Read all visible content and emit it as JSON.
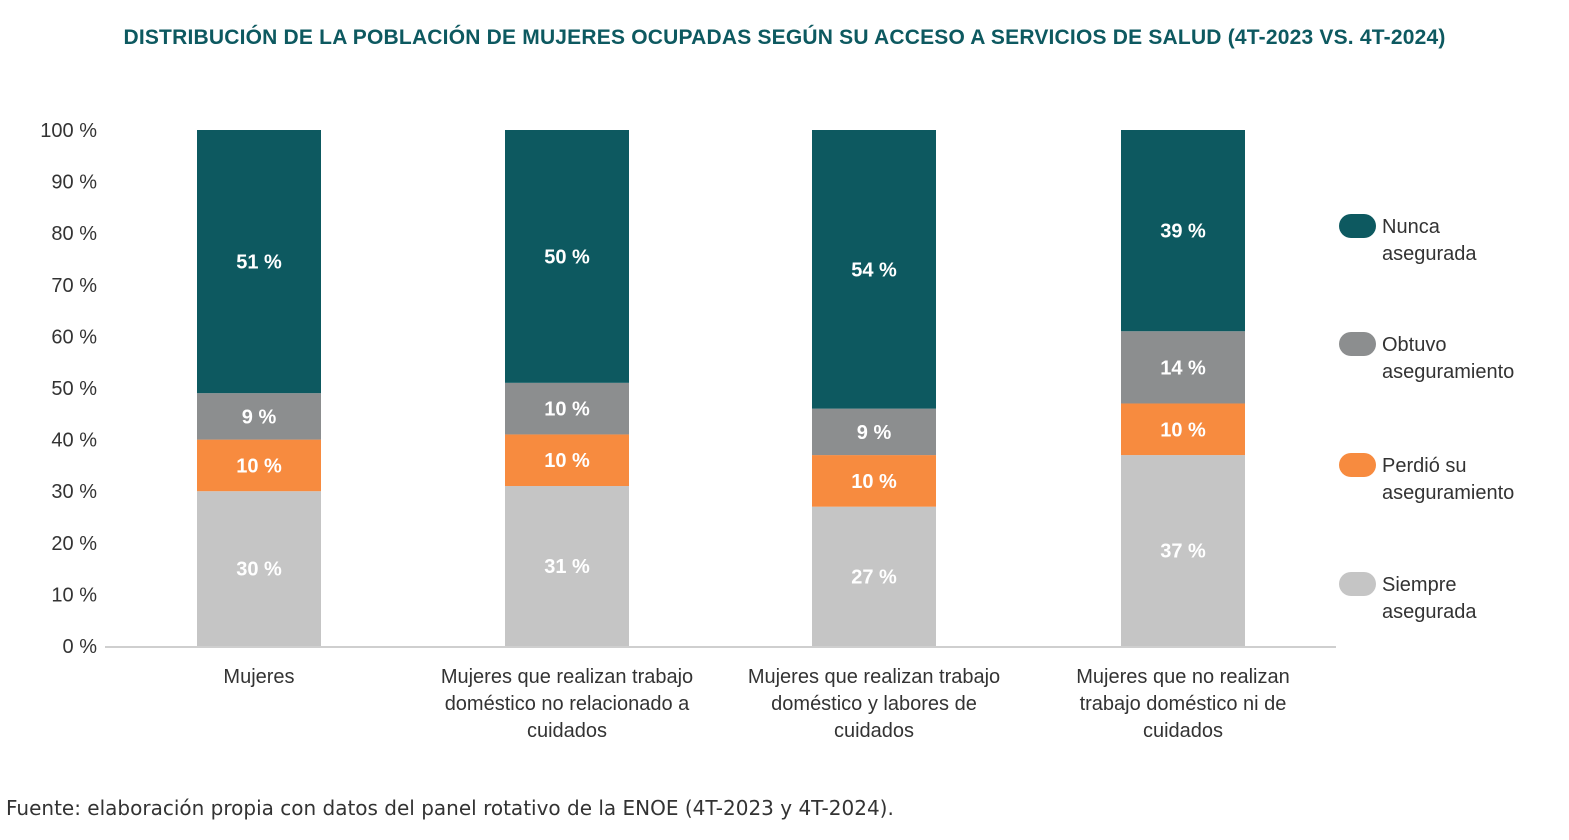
{
  "title": "DISTRIBUCIÓN DE LA POBLACIÓN DE MUJERES OCUPADAS SEGÚN SU ACCESO A SERVICIOS DE SALUD (4T-2023 VS. 4T-2024)",
  "source": "Fuente: elaboración propia con datos del panel rotativo de la ENOE (4T-2023 y 4T-2024).",
  "chart_data": {
    "type": "bar",
    "stacked": true,
    "title": "DISTRIBUCIÓN DE LA POBLACIÓN DE MUJERES OCUPADAS SEGÚN SU ACCESO A SERVICIOS DE SALUD (4T-2023 VS. 4T-2024)",
    "categories": [
      [
        "Mujeres"
      ],
      [
        "Mujeres que realizan trabajo",
        "doméstico no relacionado a",
        "cuidados"
      ],
      [
        "Mujeres que realizan trabajo",
        "doméstico y labores de",
        "cuidados"
      ],
      [
        "Mujeres que no realizan",
        "trabajo doméstico ni de",
        "cuidados"
      ]
    ],
    "series": [
      {
        "name": [
          "Siempre",
          "asegurada"
        ],
        "color": "#c5c5c5",
        "label_color": "#ffffff",
        "values": [
          30,
          31,
          27,
          37
        ],
        "labels": [
          "30 %",
          "31 %",
          "27 %",
          "37 %"
        ]
      },
      {
        "name": [
          "Perdió su",
          "aseguramiento"
        ],
        "color": "#f78b3f",
        "label_color": "#ffffff",
        "values": [
          10,
          10,
          10,
          10
        ],
        "labels": [
          "10 %",
          "10 %",
          "10 %",
          "10 %"
        ]
      },
      {
        "name": [
          "Obtuvo",
          "aseguramiento"
        ],
        "color": "#8c8e8f",
        "label_color": "#ffffff",
        "values": [
          9,
          10,
          9,
          14
        ],
        "labels": [
          "9 %",
          "10 %",
          "9 %",
          "14 %"
        ]
      },
      {
        "name": [
          "Nunca",
          "asegurada"
        ],
        "color": "#0d5960",
        "label_color": "#ffffff",
        "values": [
          51,
          50,
          54,
          39
        ],
        "labels": [
          "51 %",
          "50 %",
          "54 %",
          "39 %"
        ]
      }
    ],
    "yticks": [
      0,
      10,
      20,
      30,
      40,
      50,
      60,
      70,
      80,
      90,
      100
    ],
    "ytick_labels": [
      "0 %",
      "10 %",
      "20 %",
      "30 %",
      "40 %",
      "50 %",
      "60 %",
      "70 %",
      "80 %",
      "90 %",
      "100 %"
    ],
    "ylim": [
      0,
      100
    ],
    "grid": false,
    "legend_position": "right"
  }
}
